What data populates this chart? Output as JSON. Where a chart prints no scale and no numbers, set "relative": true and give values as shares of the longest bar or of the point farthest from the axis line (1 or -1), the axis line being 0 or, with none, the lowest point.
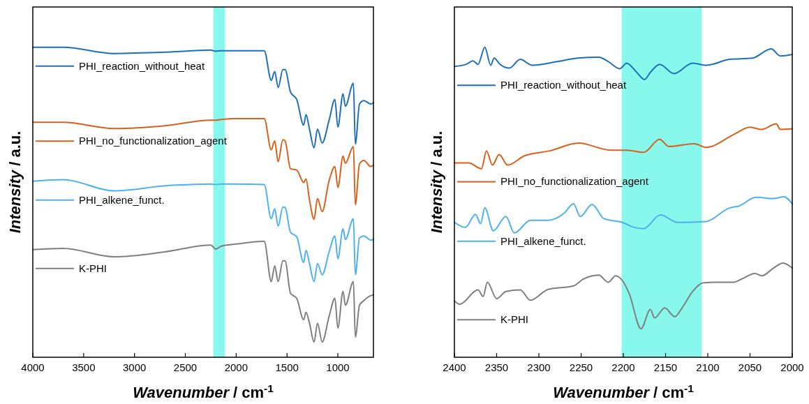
{
  "chart_data": [
    {
      "type": "line",
      "relative": true,
      "xlabel": "Wavenumber / cm$^{-1}$",
      "ylabel": "Intensity / a.u.",
      "xlim": [
        4000,
        650
      ],
      "xticks": [
        4000,
        3500,
        3000,
        2500,
        2000,
        1500,
        1000
      ],
      "legend": "left",
      "grid": false,
      "bands": [
        {
          "axis": "x",
          "from": 2225,
          "to": 2110,
          "color": "#88f7ec"
        }
      ],
      "x": [
        4000,
        3700,
        3200,
        2700,
        2250,
        2200,
        2150,
        2000,
        1724,
        1655,
        1621,
        1587,
        1541,
        1519,
        1465,
        1405,
        1336,
        1313,
        1279,
        1234,
        1200,
        1154,
        1086,
        1029,
        1000,
        949,
        926,
        847,
        828,
        787,
        744,
        676,
        650
      ],
      "series": [
        {
          "name": "PHI_reaction_without_heat",
          "color": "#1f6fb8",
          "values": [
            1.0,
            1.0,
            0.98,
            0.984,
            0.991,
            0.987,
            0.989,
            0.989,
            0.989,
            0.893,
            0.922,
            0.87,
            0.928,
            0.928,
            0.855,
            0.832,
            0.749,
            0.783,
            0.736,
            0.676,
            0.736,
            0.691,
            0.765,
            0.832,
            0.743,
            0.85,
            0.81,
            0.884,
            0.687,
            0.817,
            0.828,
            0.817,
            0.821
          ]
        },
        {
          "name": "PHI_no_functionalization_agent",
          "color": "#d8601a",
          "values": [
            0.758,
            0.758,
            0.738,
            0.747,
            0.765,
            0.765,
            0.767,
            0.77,
            0.77,
            0.669,
            0.698,
            0.631,
            0.702,
            0.698,
            0.608,
            0.604,
            0.564,
            0.575,
            0.508,
            0.445,
            0.512,
            0.47,
            0.57,
            0.615,
            0.548,
            0.649,
            0.626,
            0.68,
            0.492,
            0.624,
            0.635,
            0.615,
            0.62
          ]
        },
        {
          "name": "PHI_alkene_funct.",
          "color": "#4db1ef",
          "values": [
            0.568,
            0.573,
            0.537,
            0.553,
            0.559,
            0.557,
            0.559,
            0.559,
            0.557,
            0.447,
            0.479,
            0.423,
            0.485,
            0.483,
            0.403,
            0.389,
            0.306,
            0.345,
            0.302,
            0.244,
            0.302,
            0.266,
            0.34,
            0.391,
            0.318,
            0.414,
            0.38,
            0.447,
            0.266,
            0.385,
            0.391,
            0.378,
            0.38
          ]
        },
        {
          "name": "K-PHI",
          "color": "#7f7f7f",
          "values": [
            0.347,
            0.351,
            0.324,
            0.34,
            0.362,
            0.349,
            0.358,
            0.365,
            0.374,
            0.244,
            0.295,
            0.244,
            0.311,
            0.311,
            0.206,
            0.19,
            0.121,
            0.145,
            0.11,
            0.049,
            0.11,
            0.049,
            0.132,
            0.19,
            0.094,
            0.213,
            0.168,
            0.244,
            0.065,
            0.168,
            0.183,
            0.199,
            0.201
          ]
        }
      ]
    },
    {
      "type": "line",
      "relative": true,
      "xlabel": "Wavenumber / cm$^{-1}$",
      "ylabel": "Intensity / a.u.",
      "xlim": [
        2400,
        2000
      ],
      "xticks": [
        2400,
        2350,
        2300,
        2250,
        2200,
        2150,
        2100,
        2050,
        2000
      ],
      "legend": "left",
      "grid": false,
      "bands": [
        {
          "axis": "x",
          "from": 2202,
          "to": 2107,
          "color": "#88f7ec"
        }
      ],
      "series": [
        {
          "name": "PHI_reaction_without_heat",
          "color": "#1f6fb8",
          "x": [
            2400,
            2386,
            2378,
            2372,
            2364,
            2357,
            2353,
            2346,
            2335,
            2322,
            2308,
            2278,
            2254,
            2229,
            2218,
            2204,
            2196,
            2185,
            2175,
            2168,
            2157,
            2140,
            2118,
            2102,
            2074,
            2047,
            2025,
            2014,
            2000
          ],
          "values": [
            0.938,
            0.945,
            0.956,
            0.945,
            1.0,
            0.942,
            0.965,
            0.945,
            0.933,
            0.961,
            0.942,
            0.954,
            0.965,
            0.968,
            0.954,
            0.931,
            0.949,
            0.922,
            0.896,
            0.919,
            0.945,
            0.915,
            0.949,
            0.942,
            0.961,
            0.965,
            0.995,
            0.972,
            0.977
          ]
        },
        {
          "name": "PHI_no_functionalization_agent",
          "color": "#d8601a",
          "x": [
            2400,
            2383,
            2368,
            2362,
            2355,
            2347,
            2337,
            2317,
            2287,
            2253,
            2215,
            2196,
            2176,
            2157,
            2146,
            2116,
            2102,
            2069,
            2050,
            2036,
            2019,
            2014,
            2000
          ],
          "values": [
            0.627,
            0.627,
            0.608,
            0.666,
            0.62,
            0.654,
            0.62,
            0.65,
            0.666,
            0.691,
            0.668,
            0.668,
            0.661,
            0.703,
            0.68,
            0.689,
            0.677,
            0.719,
            0.742,
            0.735,
            0.753,
            0.735,
            0.737
          ]
        },
        {
          "name": "PHI_alkene_funct.",
          "color": "#4db1ef",
          "x": [
            2400,
            2387,
            2375,
            2369,
            2364,
            2354,
            2339,
            2329,
            2310,
            2289,
            2270,
            2259,
            2251,
            2237,
            2223,
            2201,
            2187,
            2176,
            2156,
            2136,
            2102,
            2074,
            2063,
            2043,
            2022,
            2010,
            2000
          ],
          "values": [
            0.435,
            0.419,
            0.461,
            0.431,
            0.482,
            0.408,
            0.454,
            0.401,
            0.442,
            0.442,
            0.465,
            0.495,
            0.454,
            0.493,
            0.447,
            0.435,
            0.419,
            0.415,
            0.459,
            0.435,
            0.438,
            0.482,
            0.488,
            0.516,
            0.512,
            0.518,
            0.495
          ]
        },
        {
          "name": "K-PHI",
          "color": "#7f7f7f",
          "x": [
            2400,
            2394,
            2372,
            2366,
            2361,
            2350,
            2339,
            2322,
            2310,
            2289,
            2259,
            2248,
            2229,
            2218,
            2209,
            2201,
            2193,
            2179,
            2168,
            2163,
            2151,
            2139,
            2130,
            2118,
            2106,
            2088,
            2069,
            2061,
            2044,
            2036,
            2022,
            2011,
            2000
          ],
          "values": [
            0.182,
            0.171,
            0.217,
            0.196,
            0.242,
            0.189,
            0.212,
            0.217,
            0.184,
            0.219,
            0.23,
            0.251,
            0.265,
            0.242,
            0.263,
            0.247,
            0.205,
            0.092,
            0.154,
            0.127,
            0.159,
            0.131,
            0.161,
            0.212,
            0.24,
            0.242,
            0.242,
            0.251,
            0.27,
            0.263,
            0.288,
            0.304,
            0.288
          ]
        }
      ]
    }
  ]
}
